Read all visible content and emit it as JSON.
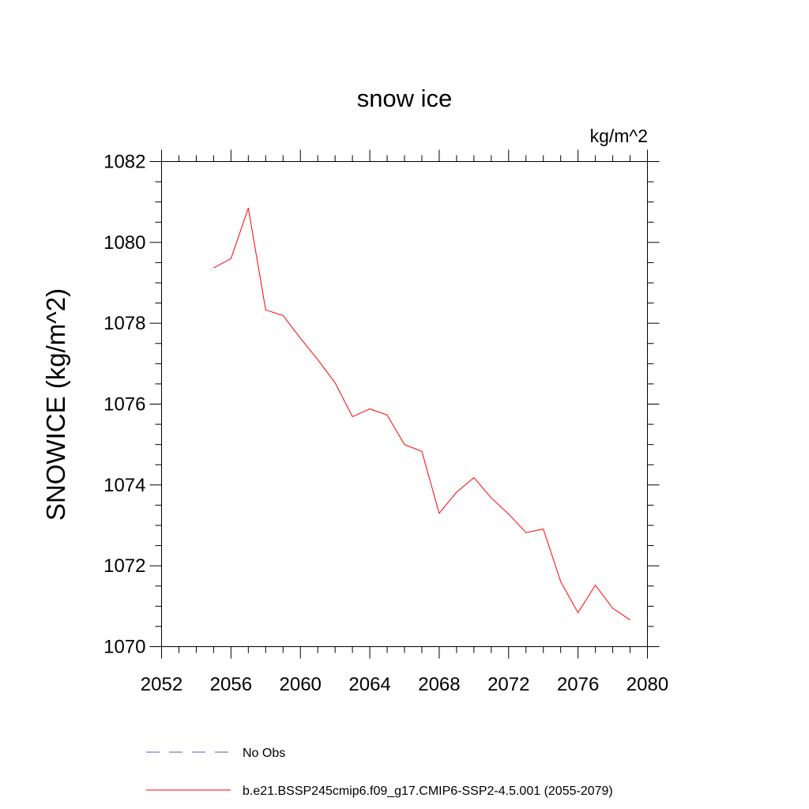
{
  "chart_data": {
    "type": "line",
    "title": "snow ice",
    "units": "kg/m^2",
    "xlabel": "",
    "ylabel": "SNOWICE  (kg/m^2)",
    "xlim": [
      2052,
      2080
    ],
    "ylim": [
      1070,
      1082
    ],
    "xticks": [
      2052,
      2056,
      2060,
      2064,
      2068,
      2072,
      2076,
      2080
    ],
    "yticks": [
      1070,
      1072,
      1074,
      1076,
      1078,
      1080,
      1082
    ],
    "grid": false,
    "legend_position": "bottom",
    "series": [
      {
        "name": "b.e21.BSSP245cmip6.f09_g17.CMIP6-SSP2-4.5.001 (2055-2079)",
        "color": "#ff0000",
        "style": "solid",
        "x": [
          2055,
          2056,
          2057,
          2058,
          2059,
          2060,
          2061,
          2062,
          2063,
          2064,
          2065,
          2066,
          2067,
          2068,
          2069,
          2070,
          2071,
          2072,
          2073,
          2074,
          2075,
          2076,
          2077,
          2078,
          2079
        ],
        "y": [
          1079.37,
          1079.6,
          1080.85,
          1078.33,
          1078.19,
          1077.63,
          1077.1,
          1076.53,
          1075.69,
          1075.88,
          1075.73,
          1075.0,
          1074.83,
          1073.3,
          1073.82,
          1074.18,
          1073.68,
          1073.28,
          1072.82,
          1072.91,
          1071.61,
          1070.84,
          1071.52,
          1070.95,
          1070.66
        ]
      }
    ],
    "legend": [
      {
        "label": "No Obs",
        "color": "#5a5ab4",
        "style": "dashed"
      },
      {
        "label": "b.e21.BSSP245cmip6.f09_g17.CMIP6-SSP2-4.5.001 (2055-2079)",
        "color": "#ff0000",
        "style": "solid"
      }
    ]
  }
}
